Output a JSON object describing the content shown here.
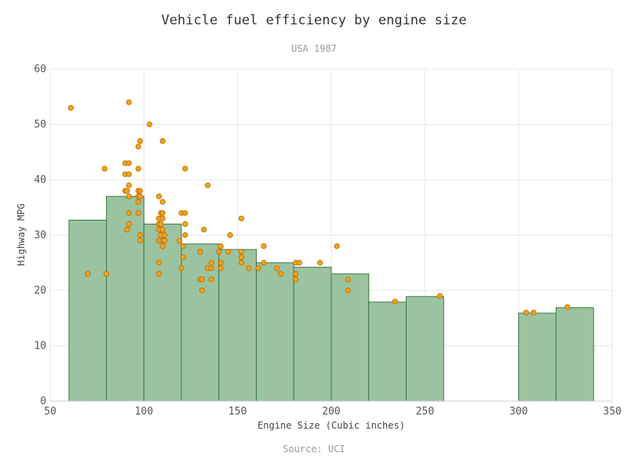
{
  "chart_data": {
    "type": "bar",
    "title": "Vehicle fuel efficiency by engine size",
    "subtitle": "USA 1987",
    "source": "Source: UCI",
    "xlabel": "Engine Size (Cubic inches)",
    "ylabel": "Highway MPG",
    "xlim": [
      50,
      350
    ],
    "ylim": [
      0,
      60
    ],
    "xticks": [
      50,
      100,
      150,
      200,
      250,
      300,
      350
    ],
    "yticks": [
      0,
      10,
      20,
      30,
      40,
      50,
      60
    ],
    "grid": true,
    "colors": {
      "bar_fill": "#9cc3a0",
      "bar_stroke": "#3a7a45",
      "point_fill": "#f5a21b",
      "point_stroke": "#b36b00",
      "grid": "#e3e8ec"
    },
    "bins": [
      {
        "x0": 60,
        "x1": 80,
        "value": 32.7
      },
      {
        "x0": 80,
        "x1": 100,
        "value": 37
      },
      {
        "x0": 100,
        "x1": 120,
        "value": 32
      },
      {
        "x0": 120,
        "x1": 140,
        "value": 28.4
      },
      {
        "x0": 140,
        "x1": 160,
        "value": 27.4
      },
      {
        "x0": 160,
        "x1": 180,
        "value": 25
      },
      {
        "x0": 180,
        "x1": 200,
        "value": 24.2
      },
      {
        "x0": 200,
        "x1": 220,
        "value": 23
      },
      {
        "x0": 220,
        "x1": 240,
        "value": 17.9
      },
      {
        "x0": 240,
        "x1": 260,
        "value": 18.9
      },
      {
        "x0": 300,
        "x1": 320,
        "value": 15.9
      },
      {
        "x0": 320,
        "x1": 340,
        "value": 16.9
      }
    ],
    "points": [
      [
        61,
        53
      ],
      [
        70,
        23
      ],
      [
        79,
        42
      ],
      [
        80,
        23
      ],
      [
        90,
        43
      ],
      [
        90,
        41
      ],
      [
        90,
        38
      ],
      [
        91,
        31
      ],
      [
        91,
        38
      ],
      [
        92,
        54
      ],
      [
        92,
        43
      ],
      [
        92,
        41
      ],
      [
        92,
        39
      ],
      [
        92,
        37
      ],
      [
        92,
        34
      ],
      [
        92,
        32
      ],
      [
        97,
        46
      ],
      [
        97,
        42
      ],
      [
        97,
        38
      ],
      [
        97,
        37
      ],
      [
        97,
        36
      ],
      [
        97,
        34
      ],
      [
        98,
        47
      ],
      [
        98,
        38
      ],
      [
        98,
        37
      ],
      [
        98,
        30
      ],
      [
        98,
        29
      ],
      [
        103,
        50
      ],
      [
        108,
        37
      ],
      [
        108,
        33
      ],
      [
        108,
        32
      ],
      [
        108,
        31
      ],
      [
        108,
        29
      ],
      [
        108,
        25
      ],
      [
        108,
        23
      ],
      [
        109,
        34
      ],
      [
        109,
        32
      ],
      [
        109,
        30
      ],
      [
        110,
        47
      ],
      [
        110,
        36
      ],
      [
        110,
        34
      ],
      [
        110,
        33
      ],
      [
        110,
        31
      ],
      [
        110,
        29
      ],
      [
        110,
        28
      ],
      [
        111,
        30
      ],
      [
        111,
        29
      ],
      [
        119,
        29
      ],
      [
        120,
        34
      ],
      [
        120,
        24
      ],
      [
        121,
        26
      ],
      [
        121,
        28
      ],
      [
        122,
        42
      ],
      [
        122,
        34
      ],
      [
        122,
        32
      ],
      [
        122,
        30
      ],
      [
        130,
        27
      ],
      [
        130,
        22
      ],
      [
        131,
        22
      ],
      [
        131,
        20
      ],
      [
        132,
        31
      ],
      [
        134,
        39
      ],
      [
        134,
        24
      ],
      [
        136,
        25
      ],
      [
        136,
        24
      ],
      [
        136,
        22
      ],
      [
        140,
        27
      ],
      [
        141,
        28
      ],
      [
        141,
        24
      ],
      [
        141,
        25
      ],
      [
        145,
        27
      ],
      [
        146,
        30
      ],
      [
        152,
        33
      ],
      [
        152,
        27
      ],
      [
        152,
        25
      ],
      [
        152,
        26
      ],
      [
        156,
        24
      ],
      [
        161,
        24
      ],
      [
        164,
        28
      ],
      [
        164,
        25
      ],
      [
        171,
        24
      ],
      [
        173,
        23
      ],
      [
        181,
        25
      ],
      [
        181,
        23
      ],
      [
        181,
        22
      ],
      [
        183,
        25
      ],
      [
        194,
        25
      ],
      [
        203,
        28
      ],
      [
        209,
        22
      ],
      [
        209,
        20
      ],
      [
        234,
        18
      ],
      [
        258,
        19
      ],
      [
        304,
        16
      ],
      [
        308,
        16
      ],
      [
        326,
        17
      ]
    ]
  }
}
